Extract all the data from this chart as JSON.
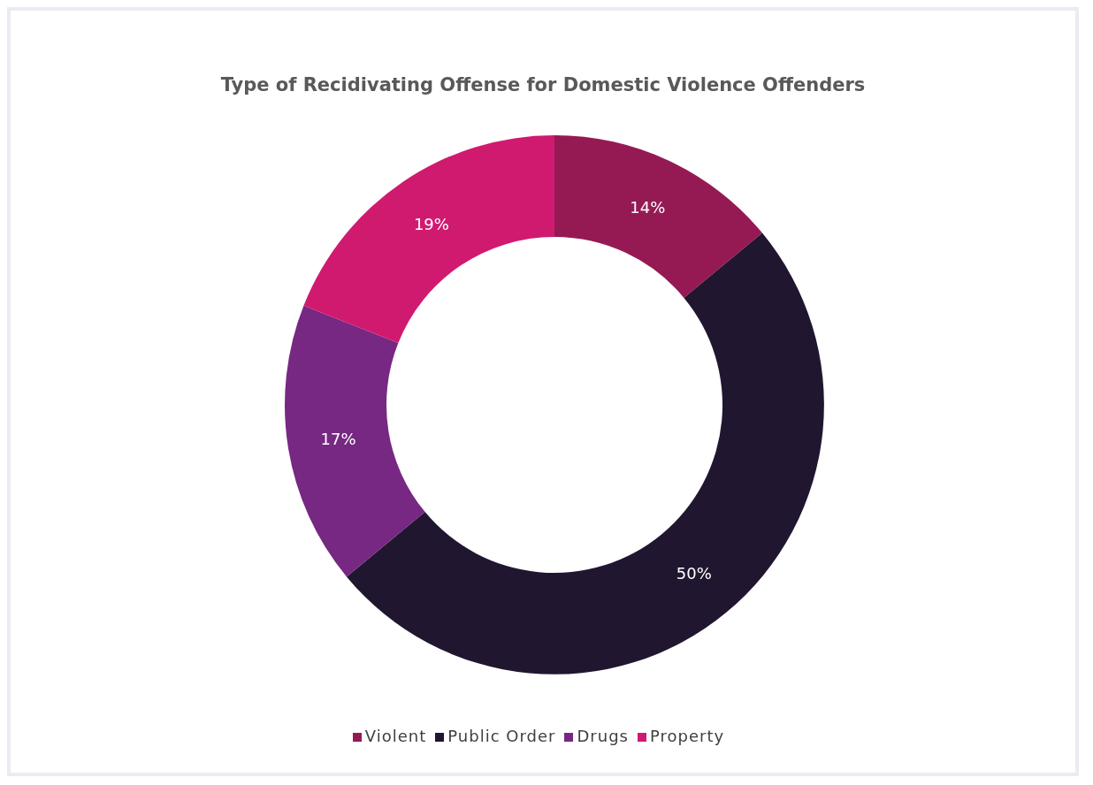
{
  "chart_data": {
    "type": "donut",
    "title": "Type of Recidivating Offense for Domestic Violence Offenders",
    "categories": [
      "Violent",
      "Public Order",
      "Drugs",
      "Property"
    ],
    "values": [
      14,
      50,
      17,
      19
    ],
    "value_labels": [
      "14%",
      "50%",
      "17%",
      "19%"
    ],
    "colors": [
      "#951a54",
      "#211630",
      "#762882",
      "#d01a70"
    ],
    "legend": "bottom"
  }
}
